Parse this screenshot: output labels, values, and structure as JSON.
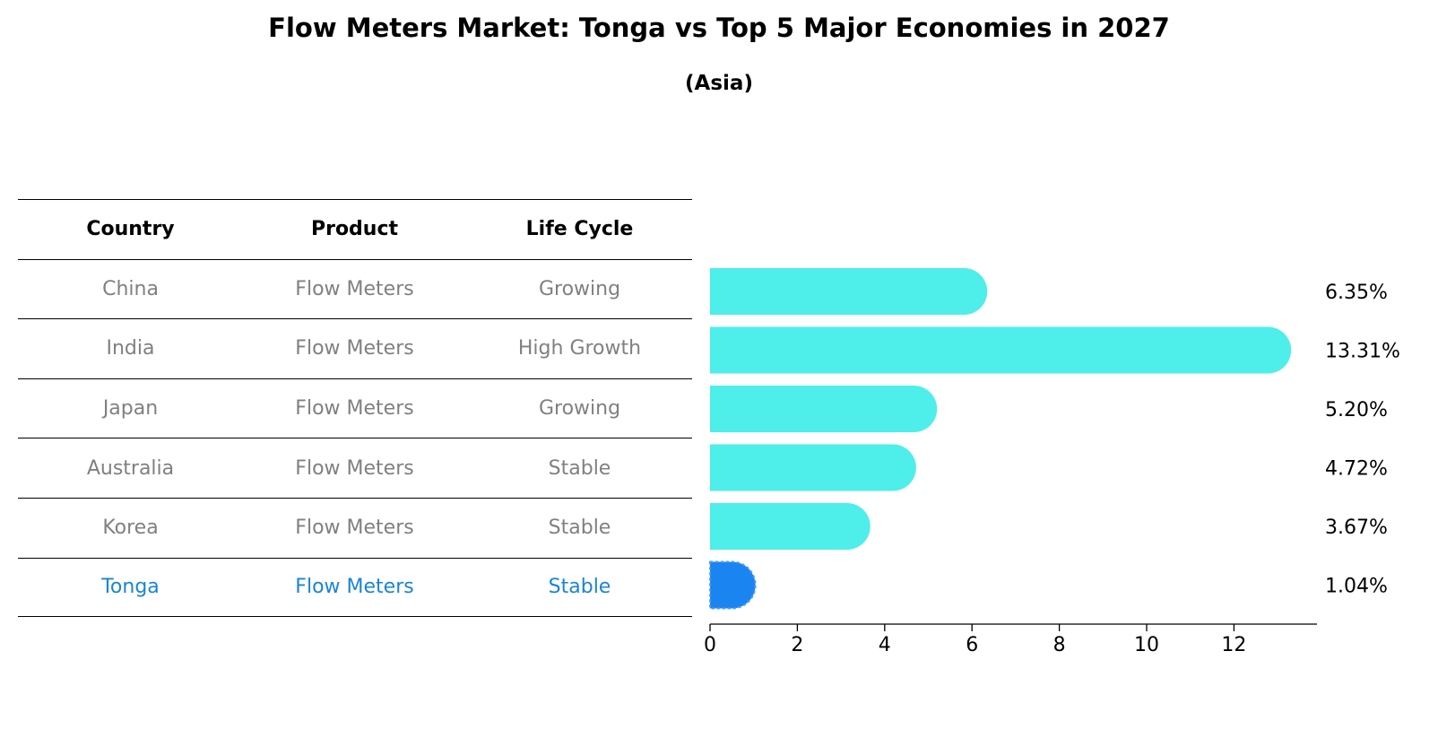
{
  "title": "Flow Meters Market: Tonga vs Top 5 Major Economies in 2027",
  "subtitle": "(Asia)",
  "table": {
    "headers": [
      "Country",
      "Product",
      "Life Cycle"
    ],
    "rows": [
      {
        "country": "China",
        "product": "Flow Meters",
        "life_cycle": "Growing"
      },
      {
        "country": "India",
        "product": "Flow Meters",
        "life_cycle": "High Growth"
      },
      {
        "country": "Japan",
        "product": "Flow Meters",
        "life_cycle": "Growing"
      },
      {
        "country": "Australia",
        "product": "Flow Meters",
        "life_cycle": "Stable"
      },
      {
        "country": "Korea",
        "product": "Flow Meters",
        "life_cycle": "Stable"
      },
      {
        "country": "Tonga",
        "product": "Flow Meters",
        "life_cycle": "Stable"
      }
    ]
  },
  "chart_data": {
    "type": "bar",
    "orientation": "horizontal",
    "categories": [
      "China",
      "India",
      "Japan",
      "Australia",
      "Korea",
      "Tonga"
    ],
    "values": [
      6.35,
      13.31,
      5.2,
      4.72,
      3.67,
      1.04
    ],
    "value_labels": [
      "6.35%",
      "13.31%",
      "5.20%",
      "4.72%",
      "3.67%",
      "1.04%"
    ],
    "xticks": [
      0,
      2,
      4,
      6,
      8,
      10,
      12
    ],
    "xlim": [
      0,
      14
    ],
    "highlight": "Tonga",
    "colors": {
      "default": "#4eeeea",
      "highlight": "#1a85f0"
    }
  }
}
